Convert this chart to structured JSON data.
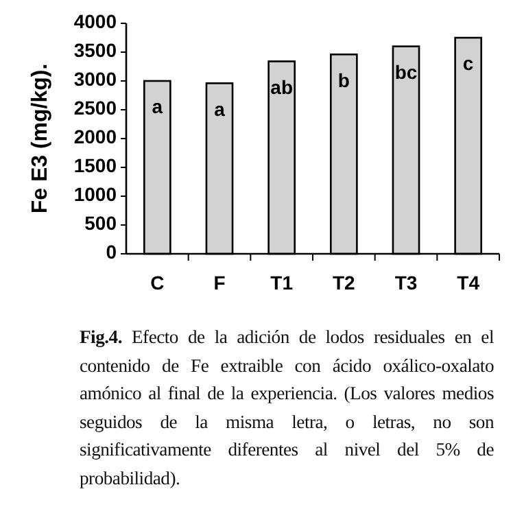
{
  "chart_data": {
    "type": "bar",
    "ylabel": "Fe E3 (mg/kg).",
    "categories": [
      "C",
      "F",
      "T1",
      "T2",
      "T3",
      "T4"
    ],
    "values": [
      3000,
      2960,
      3340,
      3460,
      3600,
      3750
    ],
    "color": "#d2d2d2",
    "ylim": [
      0,
      4000
    ],
    "yticks": [
      0,
      500,
      1000,
      1500,
      2000,
      2500,
      3000,
      3500,
      4000
    ],
    "grid": false,
    "value_labels": [
      "a",
      "a",
      "ab",
      "b",
      "bc",
      "c"
    ],
    "annotations": [
      "Fig.4. Efecto de la adición de lodos residuales en el contenido de Fe extraible con ácido oxálico-oxalato amónico al final de la experiencia. (Los valores medios seguidos de la misma letra, o letras, no son significativamente diferentes al nivel del 5% de probabilidad)."
    ]
  }
}
